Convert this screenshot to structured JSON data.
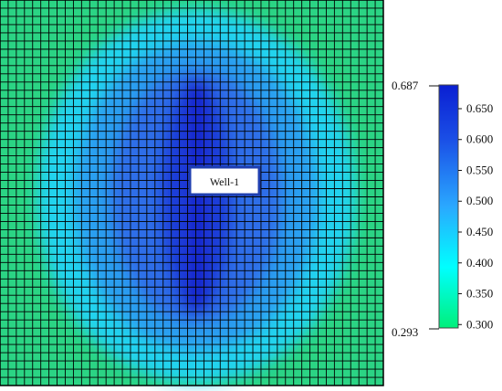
{
  "well": {
    "label": "Well-1"
  },
  "colorbar": {
    "min_label": "0.293",
    "max_label": "0.687",
    "min_value": 0.293,
    "max_value": 0.687,
    "ticks": [
      "0.650",
      "0.600",
      "0.550",
      "0.500",
      "0.450",
      "0.400",
      "0.350",
      "0.300"
    ],
    "gradient": [
      "#00f07a",
      "#00ffff",
      "#2aa8ff",
      "#1a4ee6",
      "#0a1fd2"
    ]
  },
  "colors": {
    "background_field": "#2bd484",
    "cyan": "#22d3ee",
    "light_blue": "#2b9ff0",
    "blue": "#2d6ee8",
    "dark_blue": "#1e3ed8",
    "well_core": "#1418c8",
    "grid_line": "#000000"
  }
}
